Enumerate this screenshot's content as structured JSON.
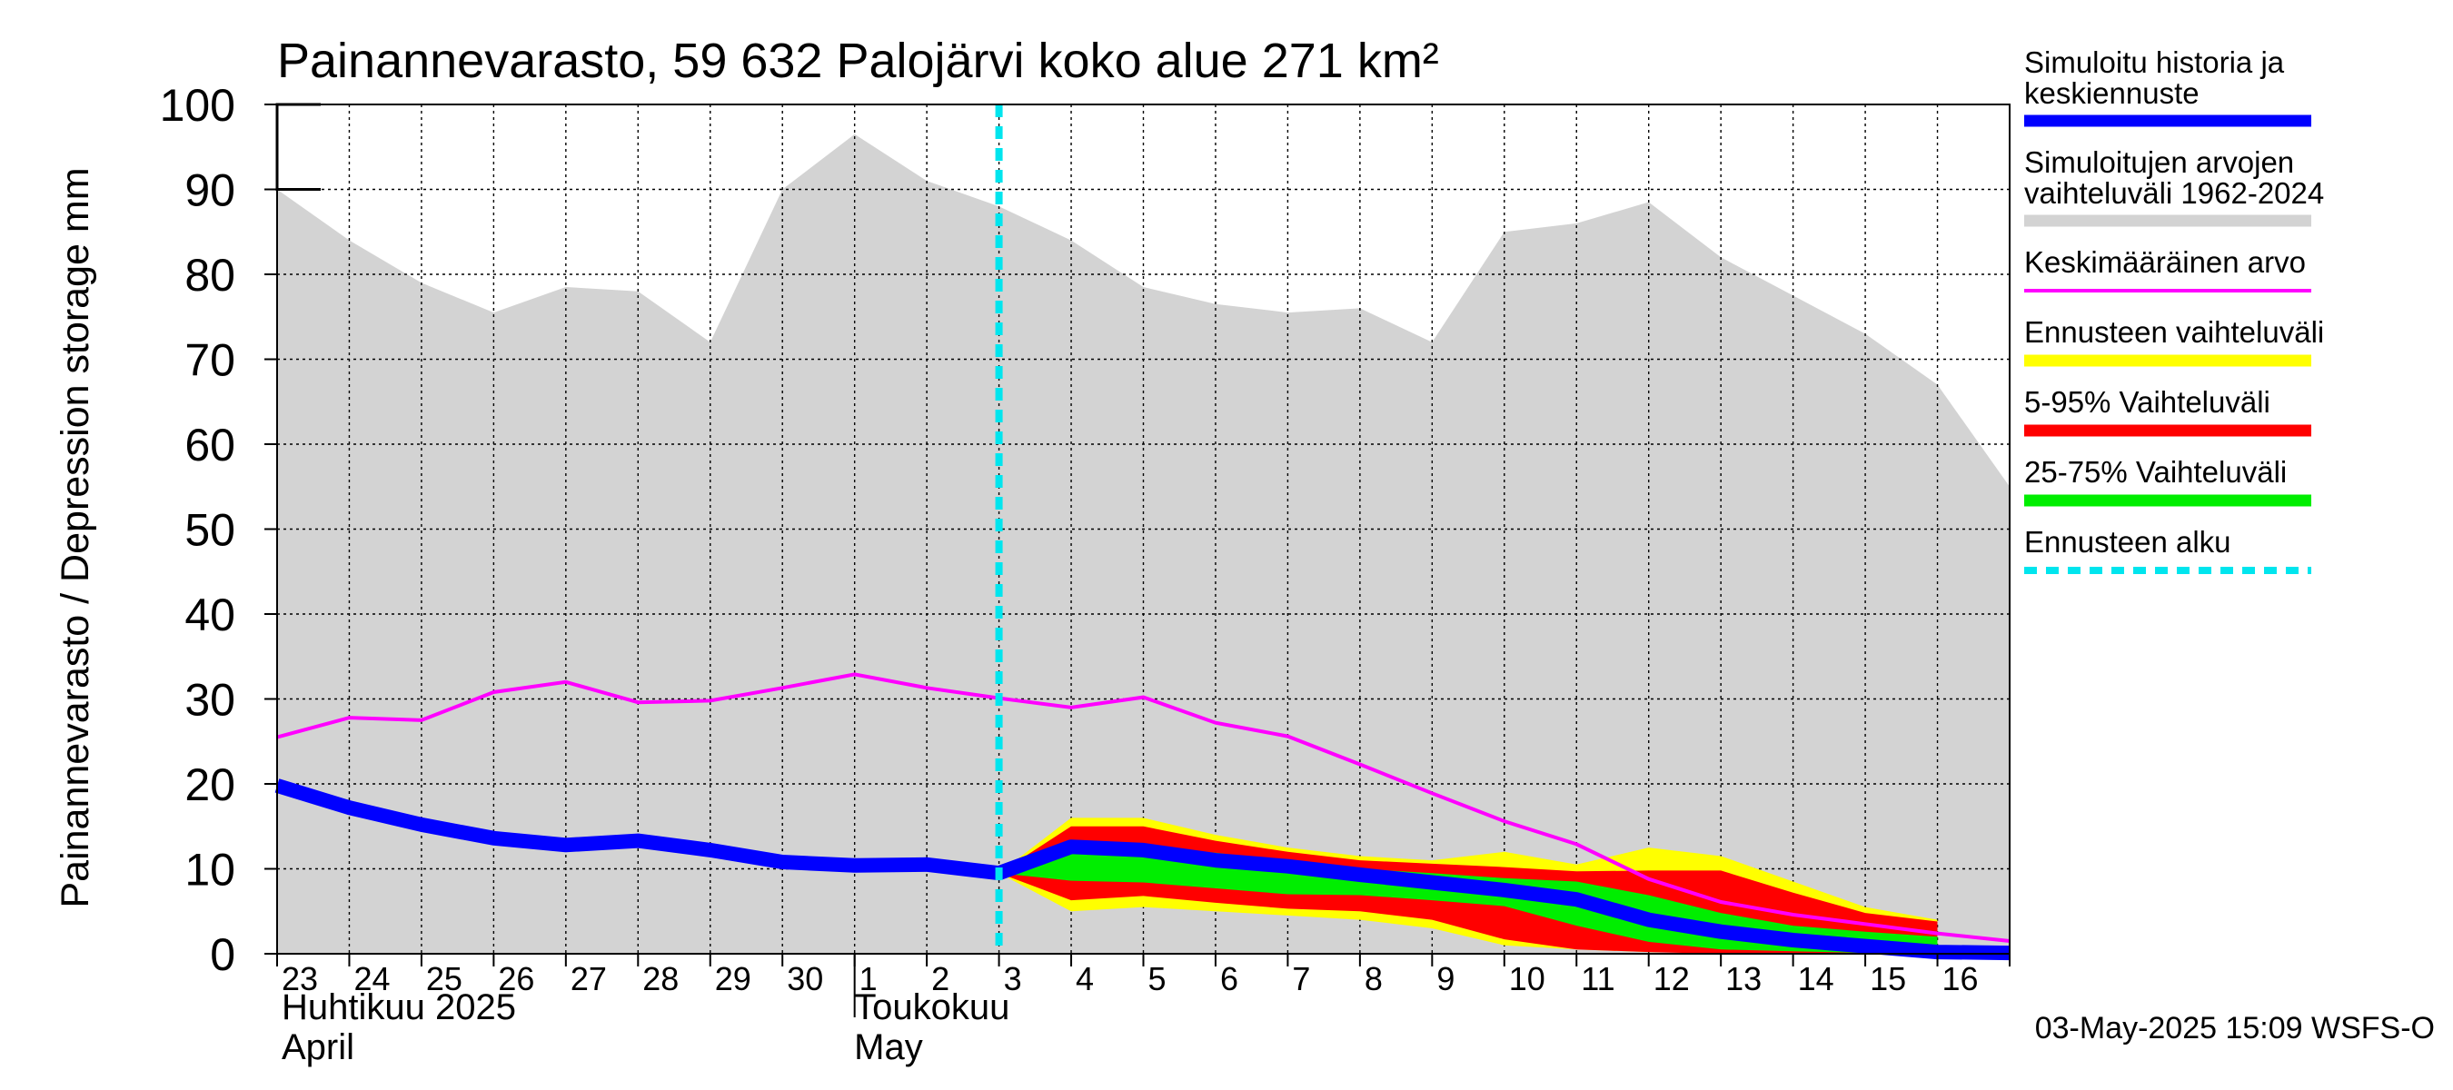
{
  "chart_data": {
    "type": "area",
    "title": "Painannevarasto, 59 632 Palojärvi koko alue 271 km²",
    "ylabel": "Painannevarasto / Depression storage    mm",
    "ylim": [
      0,
      100
    ],
    "yticks": [
      0,
      10,
      20,
      30,
      40,
      50,
      60,
      70,
      80,
      90,
      100
    ],
    "x_dates": [
      "2025-04-23",
      "2025-04-24",
      "2025-04-25",
      "2025-04-26",
      "2025-04-27",
      "2025-04-28",
      "2025-04-29",
      "2025-04-30",
      "2025-05-01",
      "2025-05-02",
      "2025-05-03",
      "2025-05-04",
      "2025-05-05",
      "2025-05-06",
      "2025-05-07",
      "2025-05-08",
      "2025-05-09",
      "2025-05-10",
      "2025-05-11",
      "2025-05-12",
      "2025-05-13",
      "2025-05-14",
      "2025-05-15",
      "2025-05-16",
      "2025-05-17"
    ],
    "xtick_labels": [
      "23",
      "24",
      "25",
      "26",
      "27",
      "28",
      "29",
      "30",
      "1",
      "2",
      "3",
      "4",
      "5",
      "6",
      "7",
      "8",
      "9",
      "10",
      "11",
      "12",
      "13",
      "14",
      "15",
      "16"
    ],
    "month_labels": [
      {
        "line1": "Huhtikuu  2025",
        "line2": "April"
      },
      {
        "line1": "Toukokuu",
        "line2": "May"
      }
    ],
    "forecast_start": "2025-05-03",
    "history_range": {
      "upper": [
        90,
        84,
        79,
        75.5,
        78.5,
        78,
        72,
        90,
        96.5,
        91,
        88,
        84,
        78.5,
        76.5,
        75.5,
        76,
        72,
        85,
        86,
        88.5,
        82,
        77.5,
        73,
        67,
        55
      ],
      "lower": [
        0,
        0,
        0,
        0,
        0,
        0,
        0,
        0,
        0,
        0,
        0,
        0,
        0,
        0,
        0,
        0,
        0,
        0,
        0,
        0,
        0,
        0,
        0,
        0,
        0
      ]
    },
    "mean": [
      25.5,
      27.8,
      27.5,
      30.8,
      32,
      29.6,
      29.8,
      31.3,
      32.9,
      31.3,
      30.1,
      29,
      30.2,
      27.2,
      25.6,
      22.3,
      18.9,
      15.6,
      12.9,
      8.8,
      6.1,
      4.6,
      3.5,
      2.4,
      1.5
    ],
    "simulated": [
      19.8,
      17.2,
      15.2,
      13.6,
      12.8,
      13.3,
      12.2,
      10.8,
      10.4,
      10.5,
      9.5,
      12.6,
      12.2,
      11,
      10.3,
      9.3,
      8.4,
      7.5,
      6.4,
      4,
      2.6,
      1.6,
      0.9,
      0.2,
      0.1
    ],
    "forecast_start_index": 10,
    "bands": {
      "full_range": {
        "upper": [
          9.5,
          16,
          16,
          14,
          12.5,
          11.5,
          11,
          12,
          10.5,
          12.5,
          11.5,
          8.5,
          5.5,
          4
        ],
        "lower": [
          9.5,
          5,
          5.5,
          5,
          4.5,
          4,
          3,
          1,
          0.5,
          0.2,
          0.1,
          0,
          0,
          0
        ]
      },
      "p5_95": {
        "upper": [
          9.5,
          15,
          15,
          13.3,
          12,
          11,
          10.6,
          10.2,
          9.7,
          9.8,
          9.8,
          7.2,
          4.8,
          3.8
        ],
        "lower": [
          9.5,
          6.3,
          6.8,
          6,
          5.3,
          5,
          4,
          1.7,
          0.5,
          0.2,
          0,
          0,
          0,
          0
        ]
      },
      "p25_75": {
        "upper": [
          9.5,
          12.4,
          12.6,
          11.9,
          10.9,
          10,
          9.5,
          8.9,
          8.5,
          6.9,
          4.8,
          3.3,
          2.6,
          2
        ],
        "lower": [
          9.5,
          8.6,
          8.4,
          7.7,
          7,
          6.9,
          6.3,
          5.6,
          3.3,
          1.4,
          0.5,
          0.3,
          0.1,
          0
        ]
      }
    },
    "series": [
      {
        "name": "Simuloitu historia ja keskiennuste",
        "color": "#0000ff"
      },
      {
        "name": "Simuloitujen arvojen vaihteluväli 1962-2024",
        "color": "#d3d3d3"
      },
      {
        "name": "Keskimääräinen arvo",
        "color": "#ff00ff"
      },
      {
        "name": "Ennusteen vaihteluväli",
        "color": "#ffff00"
      },
      {
        "name": "5-95% Vaihteluväli",
        "color": "#ff0000"
      },
      {
        "name": "25-75% Vaihteluväli",
        "color": "#00ee00"
      },
      {
        "name": "Ennusteen alku",
        "color": "#00e5ee"
      }
    ],
    "legend": {
      "placement": "right",
      "entries": [
        {
          "line1": "Simuloitu historia ja",
          "line2": "keskiennuste",
          "color": "#0000ff",
          "style": "thick"
        },
        {
          "line1": "Simuloitujen arvojen",
          "line2": "vaihteluväli 1962-2024",
          "color": "#d3d3d3",
          "style": "thick"
        },
        {
          "line1": "Keskimääräinen arvo",
          "line2": "",
          "color": "#ff00ff",
          "style": "thin"
        },
        {
          "line1": "Ennusteen vaihteluväli",
          "line2": "",
          "color": "#ffff00",
          "style": "thick"
        },
        {
          "line1": "5-95% Vaihteluväli",
          "line2": "",
          "color": "#ff0000",
          "style": "thick"
        },
        {
          "line1": "25-75% Vaihteluväli",
          "line2": "",
          "color": "#00ee00",
          "style": "thick"
        },
        {
          "line1": "Ennusteen alku",
          "line2": "",
          "color": "#00e5ee",
          "style": "dashed"
        }
      ]
    },
    "grid": true,
    "timestamp": "03-May-2025 15:09 WSFS-O"
  }
}
